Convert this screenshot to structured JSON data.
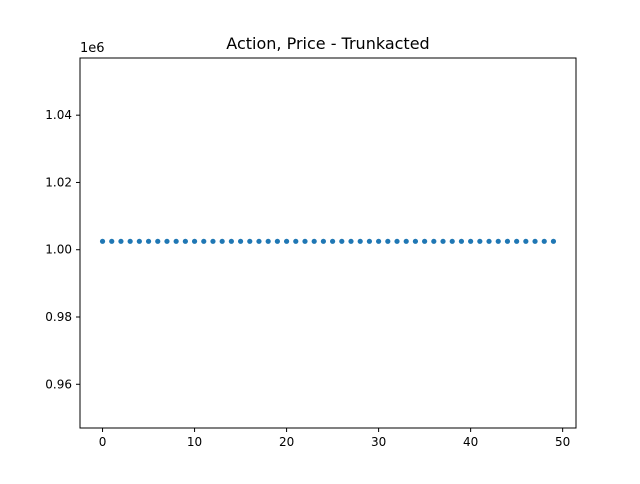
{
  "chart_data": {
    "type": "scatter",
    "title": "Action, Price - Trunkacted",
    "xlabel": "",
    "ylabel": "",
    "y_offset_label": "1e6",
    "xlim": [
      -2.45,
      51.45
    ],
    "ylim": [
      0.947,
      1.057
    ],
    "x_ticks": [
      0,
      10,
      20,
      30,
      40,
      50
    ],
    "x_tick_labels": [
      "0",
      "10",
      "20",
      "30",
      "40",
      "50"
    ],
    "y_ticks": [
      0.96,
      0.98,
      1.0,
      1.02,
      1.04
    ],
    "y_tick_labels": [
      "0.96",
      "0.98",
      "1.00",
      "1.02",
      "1.04"
    ],
    "grid": false,
    "marker_color": "#1f77b4",
    "series": [
      {
        "x": [
          0,
          1,
          2,
          3,
          4,
          5,
          6,
          7,
          8,
          9,
          10,
          11,
          12,
          13,
          14,
          15,
          16,
          17,
          18,
          19,
          20,
          21,
          22,
          23,
          24,
          25,
          26,
          27,
          28,
          29,
          30,
          31,
          32,
          33,
          34,
          35,
          36,
          37,
          38,
          39,
          40,
          41,
          42,
          43,
          44,
          45,
          46,
          47,
          48,
          49
        ],
        "y": [
          1.0025,
          1.0025,
          1.0025,
          1.0025,
          1.0025,
          1.0025,
          1.0025,
          1.0025,
          1.0025,
          1.0025,
          1.0025,
          1.0025,
          1.0025,
          1.0025,
          1.0025,
          1.0025,
          1.0025,
          1.0025,
          1.0025,
          1.0025,
          1.0025,
          1.0025,
          1.0025,
          1.0025,
          1.0025,
          1.0025,
          1.0025,
          1.0025,
          1.0025,
          1.0025,
          1.0025,
          1.0025,
          1.0025,
          1.0025,
          1.0025,
          1.0025,
          1.0025,
          1.0025,
          1.0025,
          1.0025,
          1.0025,
          1.0025,
          1.0025,
          1.0025,
          1.0025,
          1.0025,
          1.0025,
          1.0025,
          1.0025,
          1.0025
        ]
      }
    ]
  }
}
